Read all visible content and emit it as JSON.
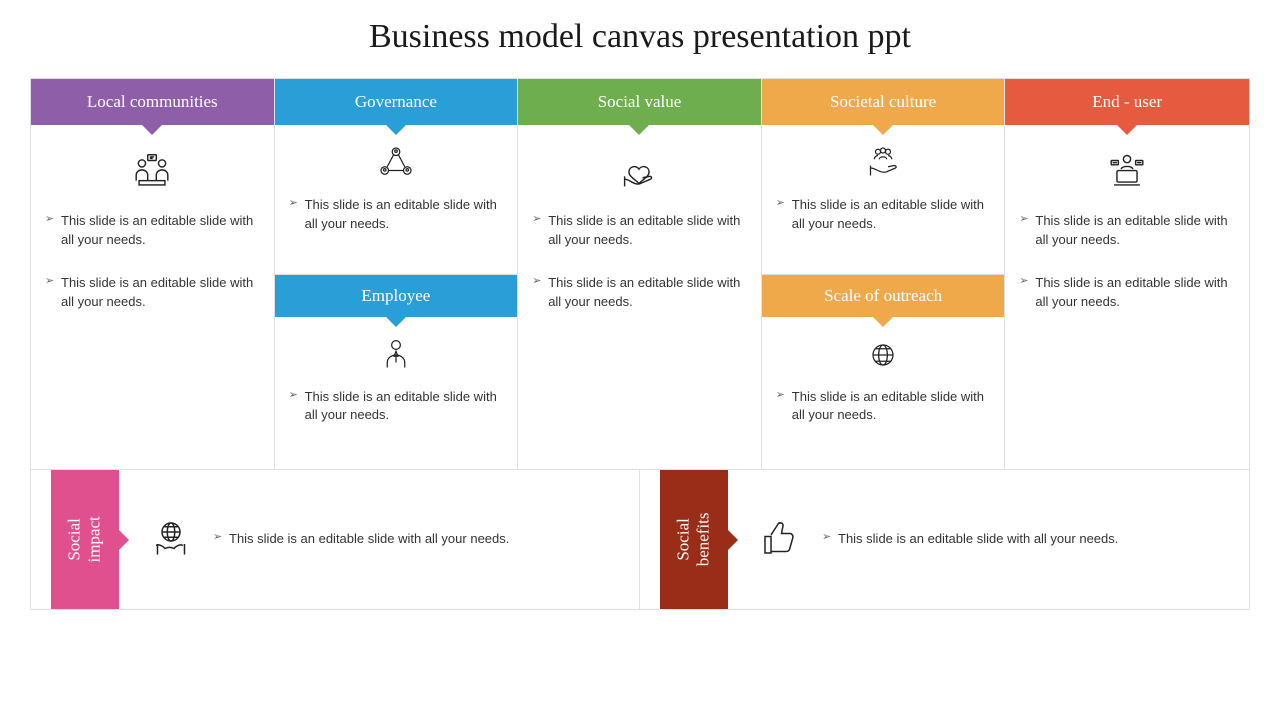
{
  "title": "Business model canvas presentation ppt",
  "placeholder": "This slide is an editable slide with all your needs.",
  "colors": {
    "purple": "#8e5fa8",
    "blue": "#2a9ed6",
    "green": "#6fae4e",
    "orange": "#f0a94a",
    "red": "#e65b3f",
    "pink": "#e0508e",
    "brown": "#9a2d17"
  },
  "top": [
    {
      "label": "Local communities",
      "colorKey": "purple",
      "icon": "meeting",
      "bullets": 2
    },
    {
      "label": "Governance",
      "colorKey": "blue",
      "icon": "network",
      "bullets": 1,
      "sub": {
        "label": "Employee",
        "colorKey": "blue",
        "icon": "person",
        "bullets": 1
      }
    },
    {
      "label": "Social value",
      "colorKey": "green",
      "icon": "heart-hand",
      "bullets": 2
    },
    {
      "label": "Societal culture",
      "colorKey": "orange",
      "icon": "group-hand",
      "bullets": 1,
      "sub": {
        "label": "Scale of outreach",
        "colorKey": "orange",
        "icon": "globe",
        "bullets": 1
      }
    },
    {
      "label": "End - user",
      "colorKey": "red",
      "icon": "laptop-user",
      "bullets": 2
    }
  ],
  "bottom": [
    {
      "label": "Social impact",
      "colorKey": "pink",
      "icon": "globe-hands",
      "bullets": 1
    },
    {
      "label": "Social benefits",
      "colorKey": "brown",
      "icon": "thumbs-up",
      "bullets": 1
    }
  ]
}
